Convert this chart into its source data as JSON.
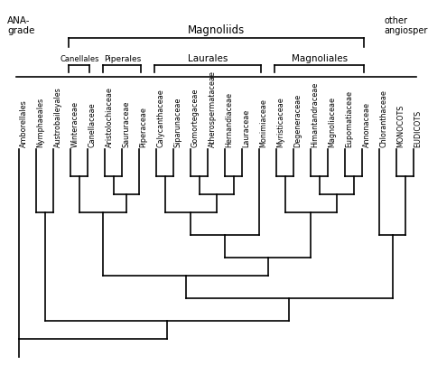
{
  "taxa": [
    "Amborellales",
    "Nymphaeales",
    "Austrobaileyales",
    "Winteraceae",
    "Canellaceae",
    "Aristolochiaceae",
    "Saururaceae",
    "Piperaceae",
    "Calycanthaceae",
    "Siparunaceae",
    "Gomortegaceae",
    "Atherospermataceae",
    "Hernandiaceae",
    "Lauraceae",
    "Monimiaceae",
    "Myristicaceae",
    "Degeneraceae",
    "Himantandraceae",
    "Magnoliaceae",
    "Eupomatiaceae",
    "Annonaceae",
    "Chloranthaceae",
    "MONOCOTS",
    "EUDICOTS"
  ],
  "background_color": "#ffffff",
  "line_color": "#000000",
  "lw": 1.2,
  "label_fontsize": 5.8,
  "title1_fontsize": 8.5,
  "title2_fontsize": 6.5,
  "order_fontsize": 7.5,
  "canellales_fontsize": 6.0,
  "piperales_fontsize": 6.5
}
